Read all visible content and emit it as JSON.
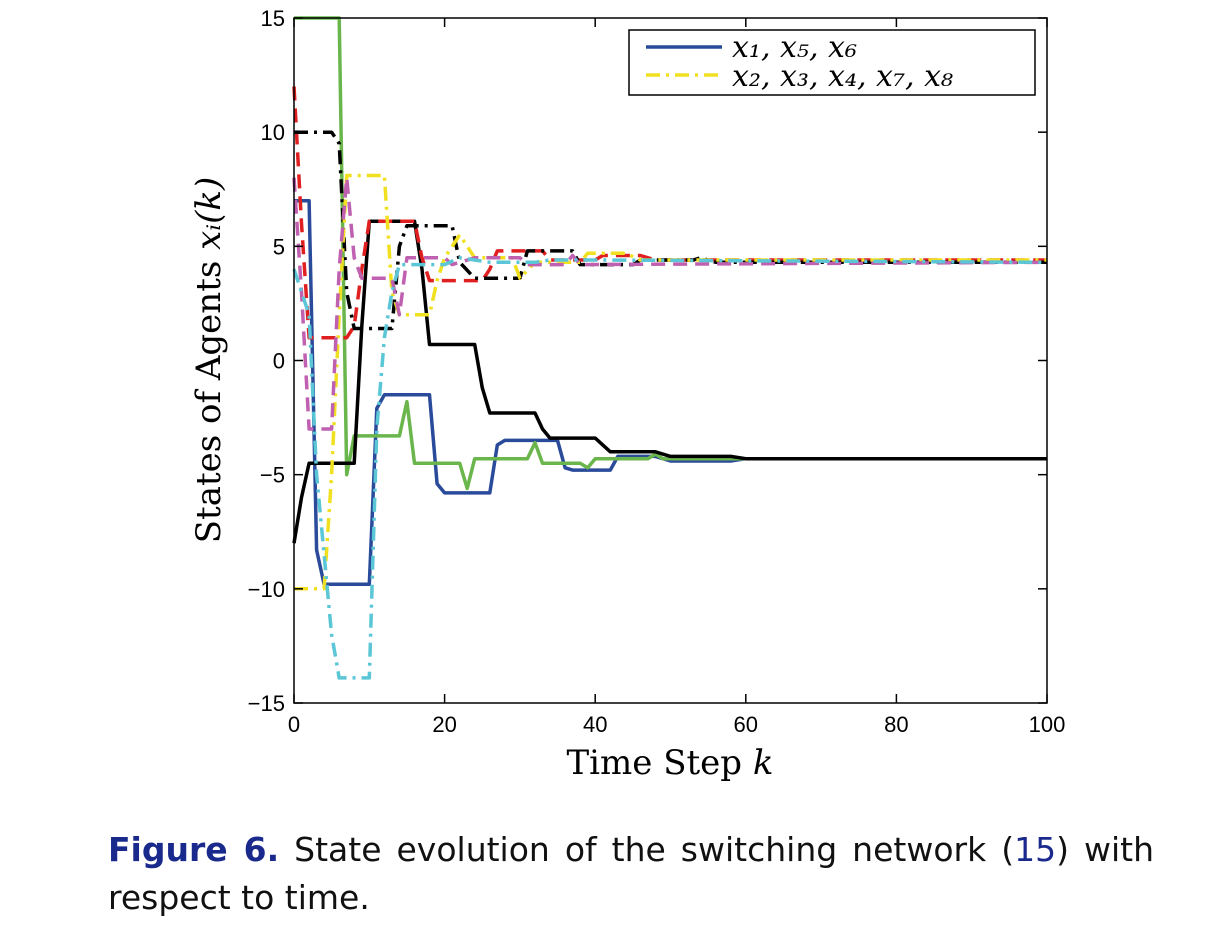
{
  "chart_data": {
    "type": "line",
    "xlabel": "Time Step k",
    "ylabel": "States of Agents x_i(k)",
    "xlim": [
      0,
      100
    ],
    "ylim": [
      -15,
      15
    ],
    "xticks": [
      "0",
      "20",
      "40",
      "60",
      "80",
      "100"
    ],
    "yticks": [
      "15",
      "10",
      "5",
      "0",
      "−5",
      "−10",
      "−15"
    ],
    "grid": false,
    "legend_position": "top-right",
    "legend": [
      {
        "label": "x₁, x₅, x₆",
        "color": "#2a4a9a",
        "dash": "solid"
      },
      {
        "label": "x₂, x₃, x₄, x₇, x₈",
        "color": "#f0e020",
        "dash": "dashdot"
      }
    ],
    "series": [
      {
        "color": "#2a4a9a",
        "dash": "solid",
        "points": [
          [
            0,
            7
          ],
          [
            2,
            7
          ],
          [
            3,
            -8.3
          ],
          [
            4,
            -9.8
          ],
          [
            10,
            -9.8
          ],
          [
            11,
            -2.1
          ],
          [
            12,
            -1.5
          ],
          [
            18,
            -1.5
          ],
          [
            19,
            -5.4
          ],
          [
            20,
            -5.8
          ],
          [
            26,
            -5.8
          ],
          [
            27,
            -3.7
          ],
          [
            28,
            -3.5
          ],
          [
            35,
            -3.5
          ],
          [
            36,
            -4.7
          ],
          [
            37,
            -4.8
          ],
          [
            42,
            -4.8
          ],
          [
            43,
            -4.2
          ],
          [
            48,
            -4.2
          ],
          [
            50,
            -4.4
          ],
          [
            58,
            -4.4
          ],
          [
            60,
            -4.3
          ],
          [
            100,
            -4.3
          ]
        ]
      },
      {
        "color": "#6ab64c",
        "dash": "solid",
        "points": [
          [
            0,
            15
          ],
          [
            6,
            15
          ],
          [
            7,
            -5
          ],
          [
            8,
            -3.3
          ],
          [
            14,
            -3.3
          ],
          [
            15,
            -1.8
          ],
          [
            16,
            -4.5
          ],
          [
            22,
            -4.5
          ],
          [
            23,
            -5.6
          ],
          [
            24,
            -4.3
          ],
          [
            31,
            -4.3
          ],
          [
            32,
            -3.6
          ],
          [
            33,
            -4.5
          ],
          [
            38,
            -4.5
          ],
          [
            39,
            -4.7
          ],
          [
            40,
            -4.3
          ],
          [
            47,
            -4.3
          ],
          [
            48,
            -4.1
          ],
          [
            49,
            -4.3
          ],
          [
            100,
            -4.3
          ]
        ]
      },
      {
        "color": "#000000",
        "dash": "solid",
        "points": [
          [
            0,
            -8
          ],
          [
            1,
            -6
          ],
          [
            2,
            -4.5
          ],
          [
            8,
            -4.5
          ],
          [
            9,
            1.5
          ],
          [
            10,
            6.1
          ],
          [
            16,
            6.1
          ],
          [
            17,
            4
          ],
          [
            18,
            0.7
          ],
          [
            24,
            0.7
          ],
          [
            25,
            -1.2
          ],
          [
            26,
            -2.3
          ],
          [
            32,
            -2.3
          ],
          [
            33,
            -3
          ],
          [
            34,
            -3.4
          ],
          [
            40,
            -3.4
          ],
          [
            42,
            -4
          ],
          [
            48,
            -4
          ],
          [
            50,
            -4.2
          ],
          [
            58,
            -4.2
          ],
          [
            60,
            -4.3
          ],
          [
            100,
            -4.3
          ]
        ]
      },
      {
        "color": "#e02020",
        "dash": "dashed",
        "points": [
          [
            0,
            12
          ],
          [
            1,
            6
          ],
          [
            2,
            1
          ],
          [
            6,
            1
          ],
          [
            7,
            1
          ],
          [
            8,
            1.5
          ],
          [
            9,
            4
          ],
          [
            10,
            6.1
          ],
          [
            16,
            6.1
          ],
          [
            17,
            4.5
          ],
          [
            18,
            3.5
          ],
          [
            20,
            3.5
          ],
          [
            21,
            3.5
          ],
          [
            25,
            3.5
          ],
          [
            26,
            4
          ],
          [
            27,
            4.8
          ],
          [
            33,
            4.8
          ],
          [
            34,
            4.4
          ],
          [
            40,
            4.4
          ],
          [
            41,
            4.6
          ],
          [
            46,
            4.6
          ],
          [
            48,
            4.4
          ],
          [
            100,
            4.4
          ]
        ]
      },
      {
        "color": "#000000",
        "dash": "dashdot",
        "points": [
          [
            0,
            10
          ],
          [
            5,
            10
          ],
          [
            6,
            9.5
          ],
          [
            7,
            3
          ],
          [
            8,
            1.4
          ],
          [
            13,
            1.4
          ],
          [
            14,
            5
          ],
          [
            15,
            5.9
          ],
          [
            21,
            5.9
          ],
          [
            22,
            4.3
          ],
          [
            24,
            3.6
          ],
          [
            30,
            3.6
          ],
          [
            31,
            4.8
          ],
          [
            37,
            4.8
          ],
          [
            38,
            4.2
          ],
          [
            45,
            4.2
          ],
          [
            46,
            4.4
          ],
          [
            53,
            4.4
          ],
          [
            54,
            4.5
          ],
          [
            56,
            4.3
          ],
          [
            100,
            4.3
          ]
        ]
      },
      {
        "color": "#f0e020",
        "dash": "dashdot",
        "points": [
          [
            0,
            -10
          ],
          [
            4,
            -10
          ],
          [
            5,
            -5
          ],
          [
            6,
            2
          ],
          [
            7,
            8.1
          ],
          [
            12,
            8.1
          ],
          [
            13,
            3
          ],
          [
            14,
            2
          ],
          [
            18,
            2
          ],
          [
            19,
            3.5
          ],
          [
            20,
            4.5
          ],
          [
            22,
            5.5
          ],
          [
            24,
            4.5
          ],
          [
            29,
            4.5
          ],
          [
            30,
            3.6
          ],
          [
            32,
            4.3
          ],
          [
            38,
            4.3
          ],
          [
            39,
            4.7
          ],
          [
            44,
            4.7
          ],
          [
            46,
            4.4
          ],
          [
            100,
            4.4
          ]
        ]
      },
      {
        "color": "#c060b0",
        "dash": "dashed",
        "points": [
          [
            0,
            8
          ],
          [
            1,
            3
          ],
          [
            2,
            -3
          ],
          [
            5,
            -3
          ],
          [
            6,
            4
          ],
          [
            7,
            8
          ],
          [
            8,
            4.5
          ],
          [
            9,
            3.6
          ],
          [
            13,
            3.6
          ],
          [
            14,
            2
          ],
          [
            15,
            4.5
          ],
          [
            20,
            4.5
          ],
          [
            21,
            4.2
          ],
          [
            24,
            4.5
          ],
          [
            30,
            4.5
          ],
          [
            31,
            4.2
          ],
          [
            36,
            4.2
          ],
          [
            37,
            4.6
          ],
          [
            38,
            4.2
          ],
          [
            100,
            4.3
          ]
        ]
      },
      {
        "color": "#5ac6d6",
        "dash": "dashdot",
        "points": [
          [
            0,
            4
          ],
          [
            1,
            3
          ],
          [
            2,
            2
          ],
          [
            3,
            -5
          ],
          [
            5,
            -12
          ],
          [
            6,
            -13.9
          ],
          [
            10,
            -13.9
          ],
          [
            11,
            -3
          ],
          [
            12,
            1
          ],
          [
            13,
            3
          ],
          [
            14,
            4.2
          ],
          [
            20,
            4.2
          ],
          [
            22,
            4.5
          ],
          [
            26,
            4.3
          ],
          [
            32,
            4.3
          ],
          [
            34,
            4.4
          ],
          [
            40,
            4.4
          ],
          [
            100,
            4.3
          ]
        ]
      }
    ]
  },
  "caption": {
    "label": "Figure 6.",
    "text_before": " State evolution of the switching network (",
    "ref": "15",
    "text_after": ") with respect to time."
  }
}
